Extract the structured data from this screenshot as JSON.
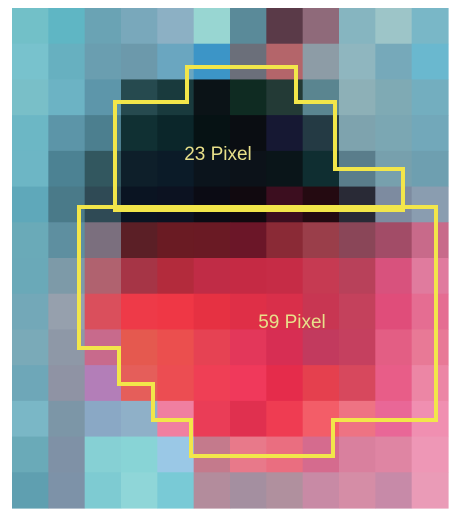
{
  "regions": {
    "top": {
      "label": "23 Pixel",
      "outline_color": "#f2e64a"
    },
    "bottom": {
      "label": "59 Pixel",
      "outline_color": "#f2e64a"
    }
  },
  "colors": {
    "label_text": "#e8e08a",
    "frame_background": "#ffffff"
  },
  "pixel_mosaic": {
    "cols": 12,
    "rows": 14,
    "palette_rows": [
      [
        "#72c0c8",
        "#5fb6c4",
        "#6aa3b4",
        "#79a8bb",
        "#8cb0c4",
        "#98d6d2",
        "#5a8a99",
        "#5a3a48",
        "#8f6a7a",
        "#86b5c0",
        "#9dc5c8",
        "#79b7c7"
      ],
      [
        "#78c2cd",
        "#67b0c0",
        "#6a9eb0",
        "#6c99ab",
        "#6aa6c0",
        "#3c95c7",
        "#6b6f7a",
        "#b4656a",
        "#8d9ca6",
        "#8fb6bf",
        "#76a9ba",
        "#6ab8cf"
      ],
      [
        "#79bfc8",
        "#6cb3c4",
        "#5d96aa",
        "#264a4f",
        "#193a3d",
        "#0b1317",
        "#0f2b22",
        "#233a36",
        "#5a8590",
        "#8db0b7",
        "#7faab4",
        "#73aebf"
      ],
      [
        "#6cb7c5",
        "#5c95a8",
        "#4c7f8f",
        "#103033",
        "#0b262a",
        "#061214",
        "#0a0d12",
        "#161833",
        "#243a44",
        "#7ea3ae",
        "#7ba7b3",
        "#72a8ba"
      ],
      [
        "#6db6c5",
        "#4c8293",
        "#32575f",
        "#0e1f2a",
        "#0b1b28",
        "#0b141c",
        "#0c1219",
        "#0a1519",
        "#0f2e31",
        "#5a7d8b",
        "#77a0ad",
        "#6e9fb0"
      ],
      [
        "#5fa8ba",
        "#4a7a89",
        "#2f4a55",
        "#0a1422",
        "#0c1221",
        "#0b0b14",
        "#11090f",
        "#3c0e1f",
        "#240a11",
        "#292a36",
        "#7d8ba0",
        "#8a9db0"
      ],
      [
        "#6aaab8",
        "#5e8fa0",
        "#7b6f7e",
        "#5b1f26",
        "#6a1b23",
        "#6a1a24",
        "#6b1628",
        "#8a2a36",
        "#9a3e4a",
        "#8a4658",
        "#a24c67",
        "#c86a8a"
      ],
      [
        "#6aa9b8",
        "#7d9aa8",
        "#b0626f",
        "#a63546",
        "#b32b3c",
        "#c02c46",
        "#c52a44",
        "#c62c46",
        "#c63a52",
        "#b8415a",
        "#d8527d",
        "#e07b9e"
      ],
      [
        "#73a8b8",
        "#96a0ad",
        "#da4f5c",
        "#ee3a48",
        "#ef3745",
        "#e63142",
        "#df2f47",
        "#d92f4a",
        "#c83652",
        "#c4415c",
        "#e04d7a",
        "#e56d92"
      ],
      [
        "#7aaab8",
        "#8e98a7",
        "#c86a8c",
        "#e5594f",
        "#eb4f4e",
        "#e64253",
        "#e3375a",
        "#d72e53",
        "#c23a5e",
        "#c5405f",
        "#e35e84",
        "#e87996"
      ],
      [
        "#6ea7b8",
        "#8f93a4",
        "#b37eb8",
        "#e55e5a",
        "#ec4d52",
        "#ef3f55",
        "#f0395b",
        "#e52c4b",
        "#e5404e",
        "#d7485d",
        "#e85d88",
        "#ec86a5"
      ],
      [
        "#7ab7c6",
        "#7c96a7",
        "#8aa8c5",
        "#8fb0c8",
        "#f07fa0",
        "#ea3d57",
        "#e0304f",
        "#ef3c52",
        "#f35d68",
        "#ee7383",
        "#e96797",
        "#f08fb1"
      ],
      [
        "#6aaab8",
        "#7f91a6",
        "#86d0d4",
        "#88d4d6",
        "#9ac8e6",
        "#c47a8c",
        "#e8798a",
        "#ea6e80",
        "#d56b8e",
        "#d9809e",
        "#df85a3",
        "#ee97b6"
      ],
      [
        "#5f9fb0",
        "#7d92a8",
        "#7ecbd2",
        "#8fd6d8",
        "#79cad6",
        "#b38c9c",
        "#a48fa0",
        "#b0909e",
        "#c88aa5",
        "#d58da6",
        "#c78aa8",
        "#ea9bb7"
      ]
    ]
  }
}
